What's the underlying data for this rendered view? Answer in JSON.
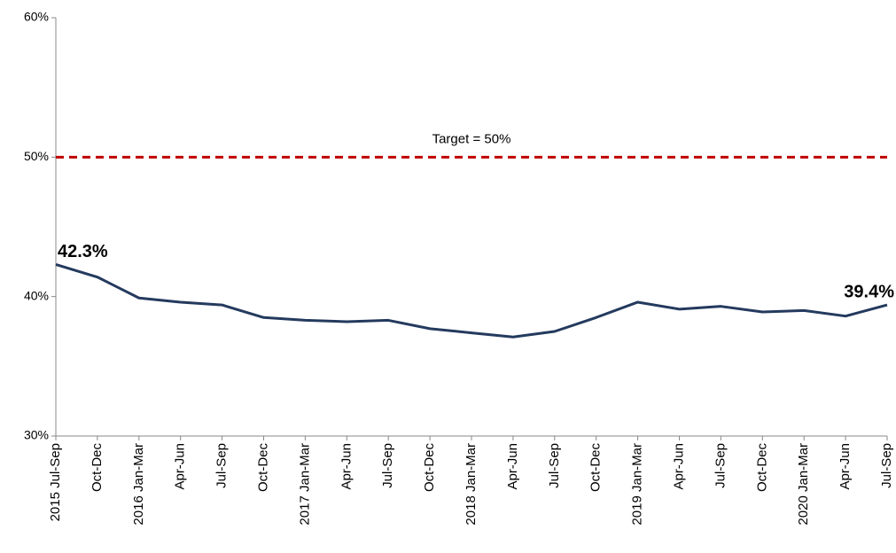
{
  "chart_data": {
    "type": "line",
    "categories": [
      "2015 Jul-Sep",
      "Oct-Dec",
      "2016 Jan-Mar",
      "Apr-Jun",
      "Jul-Sep",
      "Oct-Dec",
      "2017 Jan-Mar",
      "Apr-Jun",
      "Jul-Sep",
      "Oct-Dec",
      "2018 Jan-Mar",
      "Apr-Jun",
      "Jul-Sep",
      "Oct-Dec",
      "2019 Jan-Mar",
      "Apr-Jun",
      "Jul-Sep",
      "Oct-Dec",
      "2020 Jan-Mar",
      "Apr-Jun",
      "Jul-Sep"
    ],
    "values": [
      42.3,
      41.4,
      39.9,
      39.6,
      39.4,
      38.5,
      38.3,
      38.2,
      38.3,
      37.7,
      37.4,
      37.1,
      37.5,
      38.5,
      39.6,
      39.1,
      39.3,
      38.9,
      39.0,
      38.6,
      39.4
    ],
    "value_labels": [
      "42.3%",
      null,
      null,
      null,
      null,
      null,
      null,
      null,
      null,
      null,
      null,
      null,
      null,
      null,
      null,
      null,
      null,
      null,
      null,
      null,
      "39.4%"
    ],
    "color": "#243a5e",
    "ylim": [
      30,
      60
    ],
    "yticks": [
      {
        "value": 30,
        "label": "30%"
      },
      {
        "value": 40,
        "label": "40%"
      },
      {
        "value": 50,
        "label": "50%"
      },
      {
        "value": 60,
        "label": "60%"
      }
    ],
    "grid": false,
    "target": {
      "value": 50,
      "label": "Target = 50%",
      "color": "#c00000"
    }
  }
}
